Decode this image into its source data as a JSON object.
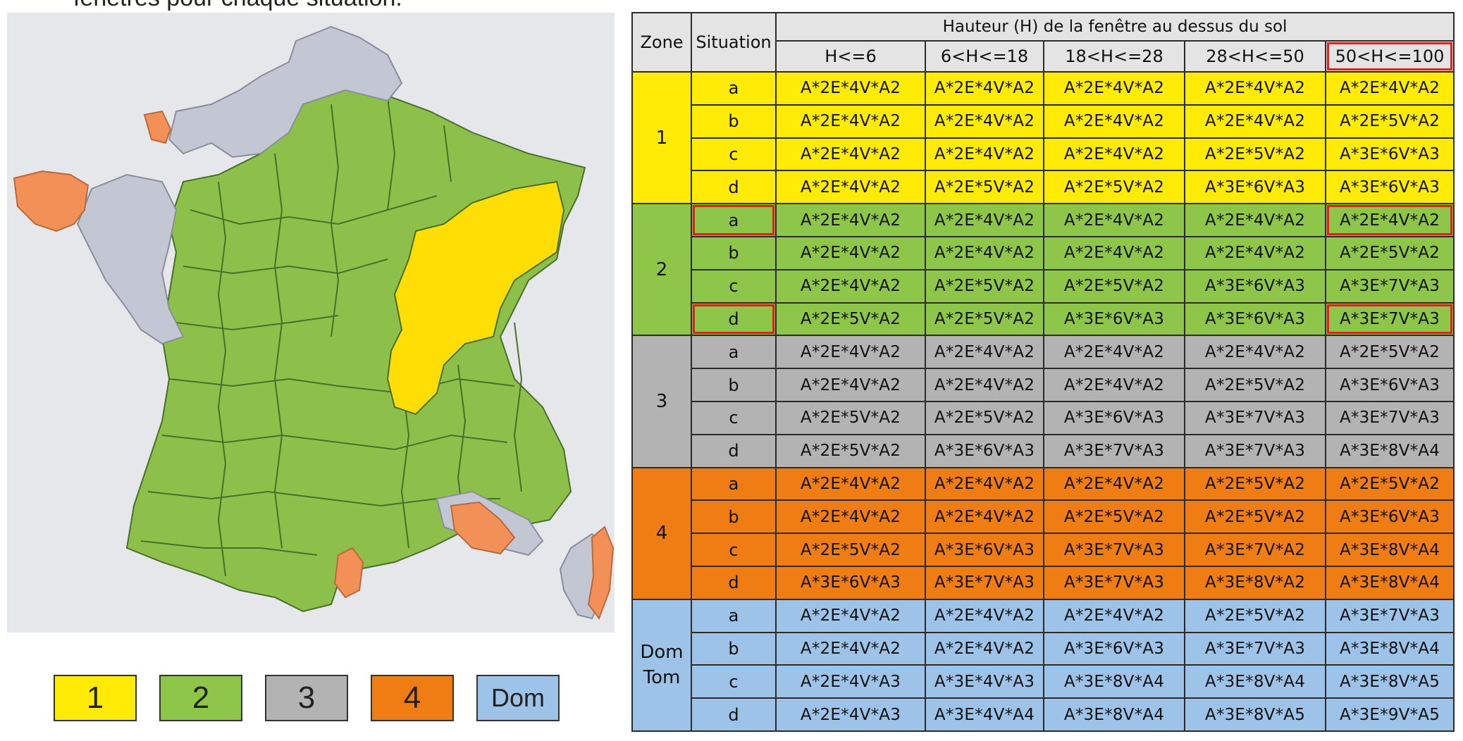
{
  "caption": "fenêtres pour chaque situation.",
  "colors": {
    "zone_1": "#ffeb05",
    "zone_2": "#8ec64a",
    "zone_3": "#b3b3b3",
    "zone_4": "#ef7d14",
    "zone_dom": "#9dc3e8",
    "map_green": "#8cc04a",
    "map_yellow": "#ffde05",
    "map_grey": "#c3c7d4",
    "map_orange": "#f39058",
    "highlight": "#e0211f"
  },
  "legend": {
    "items": [
      {
        "label": "1",
        "color": "#ffeb05"
      },
      {
        "label": "2",
        "color": "#8ec64a"
      },
      {
        "label": "3",
        "color": "#b3b3b3"
      },
      {
        "label": "4",
        "color": "#ef7d14"
      },
      {
        "label": "Dom",
        "color": "#9dc3e8"
      }
    ]
  },
  "table": {
    "col_zone": "Zone",
    "col_situation": "Situation",
    "height_header": "Hauteur (H) de la fenêtre au dessus du sol",
    "height_ranges": [
      "H<=6",
      "6<H<=18",
      "18<H<=28",
      "28<H<=50",
      "50<H<=100"
    ],
    "highlighted_range": "50<H<=100",
    "zones": [
      {
        "label": "1",
        "color": "#ffeb05",
        "rows": [
          {
            "situation": "a",
            "values": [
              "A*2E*4V*A2",
              "A*2E*4V*A2",
              "A*2E*4V*A2",
              "A*2E*4V*A2",
              "A*2E*4V*A2"
            ]
          },
          {
            "situation": "b",
            "values": [
              "A*2E*4V*A2",
              "A*2E*4V*A2",
              "A*2E*4V*A2",
              "A*2E*4V*A2",
              "A*2E*5V*A2"
            ]
          },
          {
            "situation": "c",
            "values": [
              "A*2E*4V*A2",
              "A*2E*4V*A2",
              "A*2E*4V*A2",
              "A*2E*5V*A2",
              "A*3E*6V*A3"
            ]
          },
          {
            "situation": "d",
            "values": [
              "A*2E*4V*A2",
              "A*2E*5V*A2",
              "A*2E*5V*A2",
              "A*3E*6V*A3",
              "A*3E*6V*A3"
            ]
          }
        ]
      },
      {
        "label": "2",
        "color": "#8ec64a",
        "rows": [
          {
            "situation": "a",
            "highlighted": true,
            "values": [
              "A*2E*4V*A2",
              "A*2E*4V*A2",
              "A*2E*4V*A2",
              "A*2E*4V*A2",
              "A*2E*4V*A2"
            ]
          },
          {
            "situation": "b",
            "values": [
              "A*2E*4V*A2",
              "A*2E*4V*A2",
              "A*2E*4V*A2",
              "A*2E*4V*A2",
              "A*2E*5V*A2"
            ]
          },
          {
            "situation": "c",
            "values": [
              "A*2E*4V*A2",
              "A*2E*5V*A2",
              "A*2E*5V*A2",
              "A*3E*6V*A3",
              "A*3E*7V*A3"
            ]
          },
          {
            "situation": "d",
            "highlighted": true,
            "values": [
              "A*2E*5V*A2",
              "A*2E*5V*A2",
              "A*3E*6V*A3",
              "A*3E*6V*A3",
              "A*3E*7V*A3"
            ]
          }
        ]
      },
      {
        "label": "3",
        "color": "#b3b3b3",
        "rows": [
          {
            "situation": "a",
            "values": [
              "A*2E*4V*A2",
              "A*2E*4V*A2",
              "A*2E*4V*A2",
              "A*2E*4V*A2",
              "A*2E*5V*A2"
            ]
          },
          {
            "situation": "b",
            "values": [
              "A*2E*4V*A2",
              "A*2E*4V*A2",
              "A*2E*4V*A2",
              "A*2E*5V*A2",
              "A*3E*6V*A3"
            ]
          },
          {
            "situation": "c",
            "values": [
              "A*2E*5V*A2",
              "A*2E*5V*A2",
              "A*3E*6V*A3",
              "A*3E*7V*A3",
              "A*3E*7V*A3"
            ]
          },
          {
            "situation": "d",
            "values": [
              "A*2E*5V*A2",
              "A*3E*6V*A3",
              "A*3E*7V*A3",
              "A*3E*7V*A3",
              "A*3E*8V*A4"
            ]
          }
        ]
      },
      {
        "label": "4",
        "color": "#ef7d14",
        "rows": [
          {
            "situation": "a",
            "values": [
              "A*2E*4V*A2",
              "A*2E*4V*A2",
              "A*2E*4V*A2",
              "A*2E*5V*A2",
              "A*2E*5V*A2"
            ]
          },
          {
            "situation": "b",
            "values": [
              "A*2E*4V*A2",
              "A*2E*4V*A2",
              "A*2E*5V*A2",
              "A*2E*5V*A2",
              "A*3E*6V*A3"
            ]
          },
          {
            "situation": "c",
            "values": [
              "A*2E*5V*A2",
              "A*3E*6V*A3",
              "A*3E*7V*A3",
              "A*3E*7V*A2",
              "A*3E*8V*A4"
            ]
          },
          {
            "situation": "d",
            "values": [
              "A*3E*6V*A3",
              "A*3E*7V*A3",
              "A*3E*7V*A3",
              "A*3E*8V*A2",
              "A*3E*8V*A4"
            ]
          }
        ]
      },
      {
        "label": "Dom\nTom",
        "color": "#9dc3e8",
        "rows": [
          {
            "situation": "a",
            "values": [
              "A*2E*4V*A2",
              "A*2E*4V*A2",
              "A*2E*4V*A2",
              "A*2E*5V*A2",
              "A*3E*7V*A3"
            ]
          },
          {
            "situation": "b",
            "values": [
              "A*2E*4V*A2",
              "A*2E*4V*A2",
              "A*3E*6V*A3",
              "A*3E*7V*A3",
              "A*3E*8V*A4"
            ]
          },
          {
            "situation": "c",
            "values": [
              "A*2E*4V*A3",
              "A*3E*4V*A3",
              "A*3E*8V*A4",
              "A*3E*8V*A4",
              "A*3E*8V*A5"
            ]
          },
          {
            "situation": "d",
            "values": [
              "A*2E*4V*A3",
              "A*3E*4V*A4",
              "A*3E*8V*A4",
              "A*3E*8V*A5",
              "A*3E*9V*A5"
            ]
          }
        ]
      }
    ]
  }
}
